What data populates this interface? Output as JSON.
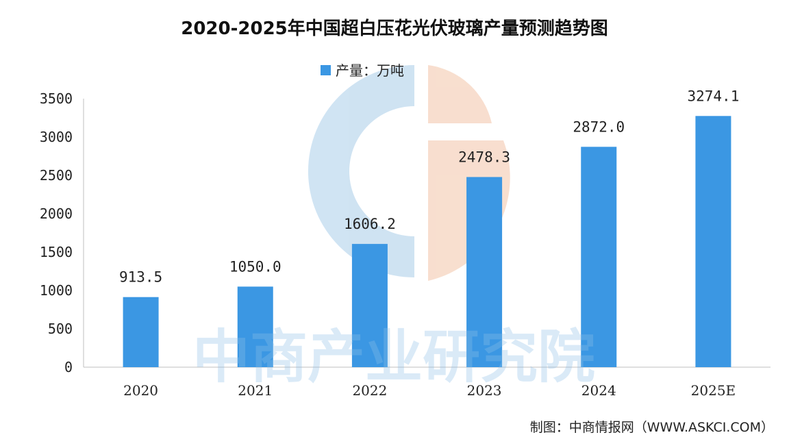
{
  "chart_data": {
    "type": "bar",
    "title": "2020-2025年中国超白压花光伏玻璃产量预测趋势图",
    "legend": {
      "label": "产量：万吨",
      "placement": "top-center"
    },
    "categories": [
      "2020",
      "2021",
      "2022",
      "2023",
      "2024",
      "2025E"
    ],
    "series": [
      {
        "name": "产量：万吨",
        "values": [
          913.5,
          1050.0,
          1606.2,
          2478.3,
          2872.0,
          3274.1
        ]
      }
    ],
    "data_labels": [
      "913.5",
      "1050.0",
      "1606.2",
      "2478.3",
      "2872.0",
      "3274.1"
    ],
    "ylim": [
      0,
      3500
    ],
    "yticks": [
      "0",
      "500",
      "1000",
      "1500",
      "2000",
      "2500",
      "3000",
      "3500"
    ],
    "grid": false,
    "bar_color": "#3b97e3"
  },
  "source": "制图：中商情报网（WWW.ASKCI.COM）",
  "watermark": "中商产业研究院"
}
